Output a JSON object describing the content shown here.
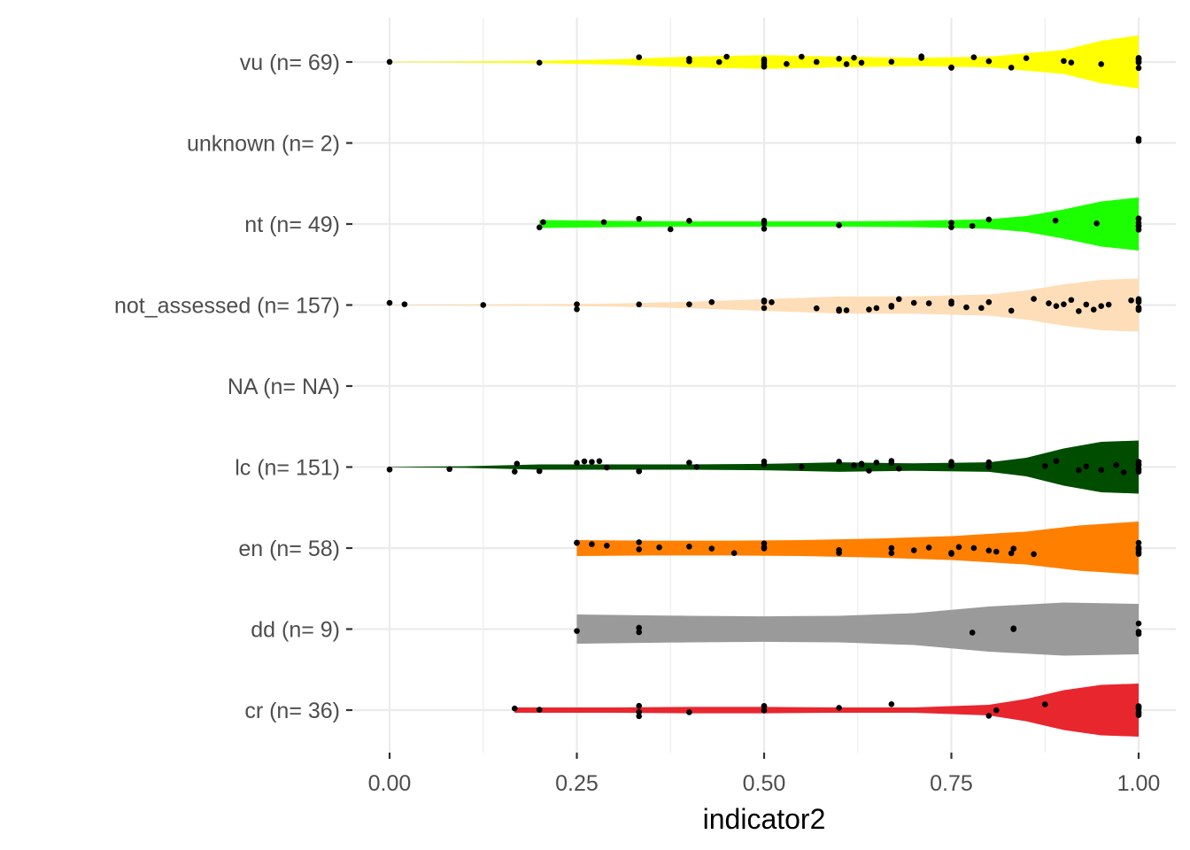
{
  "chart_data": {
    "type": "violin",
    "orientation": "horizontal",
    "title": "",
    "xlabel": "indicator2",
    "ylabel": "",
    "xlim": [
      0,
      1
    ],
    "x_ticks": [
      0,
      0.25,
      0.5,
      0.75,
      1
    ],
    "x_tick_labels": [
      "0.00",
      "0.25",
      "0.50",
      "0.75",
      "1.00"
    ],
    "grid": true,
    "legend": "none",
    "categories": [
      {
        "label": "vu (n= 69)",
        "color": "#FFFF00",
        "min": 0.0,
        "profile": [
          [
            0,
            0.01
          ],
          [
            0.1,
            0.02
          ],
          [
            0.2,
            0.04
          ],
          [
            0.3,
            0.1
          ],
          [
            0.4,
            0.2
          ],
          [
            0.5,
            0.26
          ],
          [
            0.6,
            0.2
          ],
          [
            0.7,
            0.16
          ],
          [
            0.8,
            0.2
          ],
          [
            0.9,
            0.45
          ],
          [
            0.95,
            0.8
          ],
          [
            1.0,
            1.0
          ]
        ],
        "points": [
          0,
          0.2,
          0.333,
          0.4,
          0.4,
          0.44,
          0.45,
          0.5,
          0.5,
          0.5,
          0.5,
          0.5,
          0.53,
          0.55,
          0.57,
          0.6,
          0.61,
          0.62,
          0.63,
          0.67,
          0.71,
          0.71,
          0.75,
          0.75,
          0.78,
          0.8,
          0.83,
          0.85,
          0.9,
          0.91,
          0.95,
          1,
          1,
          1,
          1,
          1,
          1
        ]
      },
      {
        "label": "unknown (n= 2)",
        "color": "#FFFFFF",
        "min": 1.0,
        "profile": [],
        "points": [
          1,
          1
        ]
      },
      {
        "label": "nt (n= 49)",
        "color": "#1CFF00",
        "min": 0.2,
        "profile": [
          [
            0.2,
            0.15
          ],
          [
            0.3,
            0.12
          ],
          [
            0.4,
            0.1
          ],
          [
            0.5,
            0.1
          ],
          [
            0.6,
            0.1
          ],
          [
            0.7,
            0.12
          ],
          [
            0.8,
            0.18
          ],
          [
            0.85,
            0.3
          ],
          [
            0.9,
            0.55
          ],
          [
            0.95,
            0.85
          ],
          [
            1.0,
            1.0
          ]
        ],
        "points": [
          0.2,
          0.205,
          0.286,
          0.333,
          0.375,
          0.4,
          0.5,
          0.5,
          0.5,
          0.6,
          0.75,
          0.75,
          0.778,
          0.8,
          0.889,
          0.944,
          1,
          1,
          1,
          1,
          1,
          1
        ]
      },
      {
        "label": "not_assessed (n= 157)",
        "color": "#FEDEB8",
        "min": 0.0,
        "profile": [
          [
            0,
            0.01
          ],
          [
            0.1,
            0.02
          ],
          [
            0.2,
            0.03
          ],
          [
            0.3,
            0.06
          ],
          [
            0.4,
            0.12
          ],
          [
            0.5,
            0.22
          ],
          [
            0.6,
            0.32
          ],
          [
            0.7,
            0.33
          ],
          [
            0.8,
            0.4
          ],
          [
            0.85,
            0.55
          ],
          [
            0.9,
            0.78
          ],
          [
            0.95,
            0.95
          ],
          [
            1.0,
            1.0
          ]
        ],
        "points": [
          0,
          0.02,
          0.125,
          0.25,
          0.25,
          0.333,
          0.4,
          0.43,
          0.5,
          0.5,
          0.5,
          0.51,
          0.57,
          0.6,
          0.6,
          0.61,
          0.64,
          0.65,
          0.67,
          0.67,
          0.68,
          0.7,
          0.72,
          0.75,
          0.75,
          0.77,
          0.79,
          0.8,
          0.83,
          0.86,
          0.88,
          0.89,
          0.9,
          0.91,
          0.92,
          0.93,
          0.94,
          0.95,
          0.96,
          0.99,
          1,
          1,
          1,
          1,
          1,
          1
        ]
      },
      {
        "label": "NA (n= NA)",
        "color": "#FFFFFF",
        "min": 0.0,
        "profile": [],
        "points": []
      },
      {
        "label": "lc (n= 151)",
        "color": "#004D00",
        "min": 0.0,
        "profile": [
          [
            0,
            0.01
          ],
          [
            0.1,
            0.03
          ],
          [
            0.2,
            0.1
          ],
          [
            0.3,
            0.1
          ],
          [
            0.4,
            0.1
          ],
          [
            0.5,
            0.12
          ],
          [
            0.6,
            0.18
          ],
          [
            0.7,
            0.14
          ],
          [
            0.8,
            0.18
          ],
          [
            0.85,
            0.35
          ],
          [
            0.9,
            0.7
          ],
          [
            0.95,
            0.95
          ],
          [
            1.0,
            1.0
          ]
        ],
        "points": [
          0,
          0.08,
          0.167,
          0.17,
          0.2,
          0.25,
          0.26,
          0.27,
          0.28,
          0.29,
          0.333,
          0.333,
          0.4,
          0.41,
          0.5,
          0.5,
          0.55,
          0.6,
          0.62,
          0.63,
          0.63,
          0.64,
          0.65,
          0.67,
          0.67,
          0.68,
          0.75,
          0.75,
          0.8,
          0.8,
          0.875,
          0.89,
          0.92,
          0.93,
          0.95,
          0.97,
          0.98,
          1,
          1,
          1,
          1,
          1,
          1
        ]
      },
      {
        "label": "en (n= 58)",
        "color": "#FF7F00",
        "min": 0.25,
        "profile": [
          [
            0.25,
            0.3
          ],
          [
            0.35,
            0.28
          ],
          [
            0.45,
            0.28
          ],
          [
            0.55,
            0.3
          ],
          [
            0.65,
            0.36
          ],
          [
            0.75,
            0.45
          ],
          [
            0.85,
            0.62
          ],
          [
            0.92,
            0.85
          ],
          [
            1.0,
            1.0
          ]
        ],
        "points": [
          0.25,
          0.25,
          0.27,
          0.29,
          0.333,
          0.333,
          0.36,
          0.4,
          0.43,
          0.46,
          0.5,
          0.5,
          0.5,
          0.6,
          0.6,
          0.67,
          0.67,
          0.7,
          0.72,
          0.75,
          0.75,
          0.76,
          0.78,
          0.8,
          0.81,
          0.83,
          0.833,
          0.86,
          1,
          1,
          1,
          1,
          1,
          1
        ]
      },
      {
        "label": "dd (n= 9)",
        "color": "#9A9A9A",
        "min": 0.25,
        "profile": [
          [
            0.25,
            0.55
          ],
          [
            0.4,
            0.5
          ],
          [
            0.5,
            0.48
          ],
          [
            0.6,
            0.5
          ],
          [
            0.7,
            0.6
          ],
          [
            0.8,
            0.85
          ],
          [
            0.9,
            1.0
          ],
          [
            1.0,
            0.95
          ]
        ],
        "points": [
          0.25,
          0.333,
          0.333,
          0.778,
          0.833,
          0.833,
          1,
          1,
          1
        ]
      },
      {
        "label": "cr (n= 36)",
        "color": "#E8262E",
        "min": 0.167,
        "profile": [
          [
            0.167,
            0.1
          ],
          [
            0.3,
            0.1
          ],
          [
            0.4,
            0.12
          ],
          [
            0.5,
            0.12
          ],
          [
            0.6,
            0.1
          ],
          [
            0.7,
            0.1
          ],
          [
            0.8,
            0.2
          ],
          [
            0.85,
            0.42
          ],
          [
            0.9,
            0.75
          ],
          [
            0.95,
            0.95
          ],
          [
            1.0,
            1.0
          ]
        ],
        "points": [
          0.167,
          0.2,
          0.333,
          0.333,
          0.333,
          0.4,
          0.5,
          0.5,
          0.5,
          0.6,
          0.67,
          0.8,
          0.81,
          0.875,
          1,
          1,
          1,
          1,
          1,
          1,
          1
        ]
      }
    ]
  }
}
